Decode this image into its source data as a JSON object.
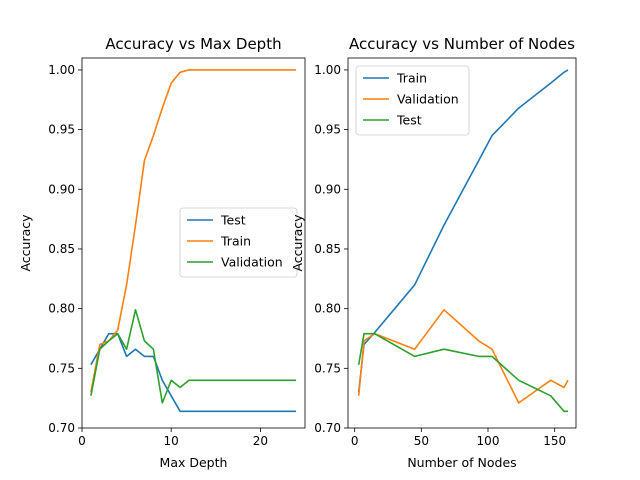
{
  "chart_data": [
    {
      "type": "line",
      "title": "Accuracy vs Max Depth",
      "xlabel": "Max Depth",
      "ylabel": "Accuracy",
      "xlim": [
        0,
        25
      ],
      "ylim": [
        0.7,
        1.01
      ],
      "xticks": [
        0,
        10,
        20
      ],
      "yticks": [
        0.7,
        0.75,
        0.8,
        0.85,
        0.9,
        0.95,
        1.0
      ],
      "legend": "center-right",
      "series": [
        {
          "name": "Test",
          "color": "#1f77b4",
          "x": [
            1,
            2,
            3,
            4,
            5,
            6,
            7,
            8,
            9,
            10,
            11,
            12,
            13,
            14,
            15,
            16,
            17,
            18,
            19,
            20,
            21,
            22,
            23,
            24
          ],
          "y": [
            0.753,
            0.766,
            0.779,
            0.779,
            0.76,
            0.766,
            0.76,
            0.76,
            0.74,
            0.727,
            0.714,
            0.714,
            0.714,
            0.714,
            0.714,
            0.714,
            0.714,
            0.714,
            0.714,
            0.714,
            0.714,
            0.714,
            0.714,
            0.714
          ]
        },
        {
          "name": "Train",
          "color": "#ff7f0e",
          "x": [
            1,
            2,
            3,
            4,
            5,
            6,
            7,
            8,
            9,
            10,
            11,
            12,
            13,
            14,
            15,
            16,
            17,
            18,
            19,
            20,
            21,
            22,
            23,
            24
          ],
          "y": [
            0.73,
            0.77,
            0.773,
            0.782,
            0.82,
            0.87,
            0.924,
            0.945,
            0.968,
            0.989,
            0.998,
            1.0,
            1.0,
            1.0,
            1.0,
            1.0,
            1.0,
            1.0,
            1.0,
            1.0,
            1.0,
            1.0,
            1.0,
            1.0
          ]
        },
        {
          "name": "Validation",
          "color": "#2ca02c",
          "x": [
            1,
            2,
            3,
            4,
            5,
            6,
            7,
            8,
            9,
            10,
            11,
            12,
            13,
            14,
            15,
            16,
            17,
            18,
            19,
            20,
            21,
            22,
            23,
            24
          ],
          "y": [
            0.727,
            0.766,
            0.773,
            0.779,
            0.766,
            0.799,
            0.773,
            0.766,
            0.721,
            0.74,
            0.734,
            0.74,
            0.74,
            0.74,
            0.74,
            0.74,
            0.74,
            0.74,
            0.74,
            0.74,
            0.74,
            0.74,
            0.74,
            0.74
          ]
        }
      ]
    },
    {
      "type": "line",
      "title": "Accuracy vs Number of Nodes",
      "xlabel": "Number of Nodes",
      "ylabel": "Accuracy",
      "xlim": [
        -5,
        166
      ],
      "ylim": [
        0.7,
        1.01
      ],
      "xticks": [
        0,
        50,
        100,
        150
      ],
      "yticks": [
        0.7,
        0.75,
        0.8,
        0.85,
        0.9,
        0.95,
        1.0
      ],
      "legend": "upper-left",
      "series": [
        {
          "name": "Train",
          "color": "#1f77b4",
          "x": [
            3,
            7,
            15,
            45,
            67,
            93,
            103,
            123,
            147,
            157,
            160
          ],
          "y": [
            0.73,
            0.77,
            0.78,
            0.82,
            0.87,
            0.924,
            0.945,
            0.968,
            0.989,
            0.998,
            1.0
          ]
        },
        {
          "name": "Validation",
          "color": "#ff7f0e",
          "x": [
            3,
            7,
            15,
            45,
            67,
            93,
            103,
            123,
            147,
            157,
            160
          ],
          "y": [
            0.727,
            0.773,
            0.779,
            0.766,
            0.799,
            0.773,
            0.766,
            0.721,
            0.74,
            0.734,
            0.74
          ]
        },
        {
          "name": "Test",
          "color": "#2ca02c",
          "x": [
            3,
            7,
            15,
            45,
            67,
            93,
            103,
            123,
            147,
            157,
            160
          ],
          "y": [
            0.753,
            0.779,
            0.779,
            0.76,
            0.766,
            0.76,
            0.76,
            0.74,
            0.727,
            0.714,
            0.714
          ]
        }
      ]
    }
  ]
}
